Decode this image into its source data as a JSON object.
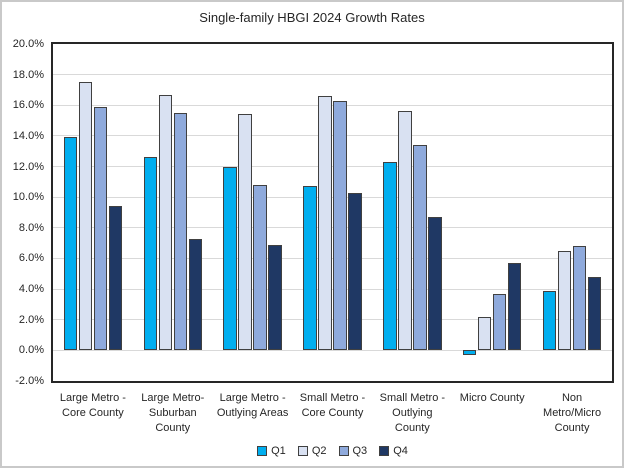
{
  "chart_data": {
    "type": "bar",
    "title": "Single-family HBGI 2024 Growth Rates",
    "categories": [
      "Large Metro - Core County",
      "Large Metro- Suburban County",
      "Large Metro - Outlying Areas",
      "Small Metro - Core County",
      "Small Metro - Outlying County",
      "Micro County",
      "Non Metro/Micro County"
    ],
    "categories_lines": [
      [
        "Large Metro -",
        "Core County"
      ],
      [
        "Large Metro-",
        "Suburban",
        "County"
      ],
      [
        "Large Metro -",
        "Outlying Areas"
      ],
      [
        "Small Metro -",
        "Core County"
      ],
      [
        "Small Metro -",
        "Outlying",
        "County"
      ],
      [
        "Micro County"
      ],
      [
        "Non",
        "Metro/Micro",
        "County"
      ]
    ],
    "series": [
      {
        "name": "Q1",
        "color": "#00AEEF",
        "values": [
          13.9,
          12.6,
          12.0,
          10.7,
          12.3,
          -0.3,
          3.9
        ]
      },
      {
        "name": "Q2",
        "color": "#D9E1F2",
        "values": [
          17.5,
          16.7,
          15.4,
          16.6,
          15.6,
          2.2,
          6.5
        ]
      },
      {
        "name": "Q3",
        "color": "#8FAADC",
        "values": [
          15.9,
          15.5,
          10.8,
          16.3,
          13.4,
          3.7,
          6.8
        ]
      },
      {
        "name": "Q4",
        "color": "#1F3864",
        "values": [
          9.4,
          7.3,
          6.9,
          10.3,
          8.7,
          5.7,
          4.8
        ]
      }
    ],
    "ylim": [
      -2,
      20
    ],
    "ytick_step": 2,
    "ytick_labels": [
      "-2.0%",
      "0.0%",
      "2.0%",
      "4.0%",
      "6.0%",
      "8.0%",
      "10.0%",
      "12.0%",
      "14.0%",
      "16.0%",
      "18.0%",
      "20.0%"
    ],
    "grid": true,
    "legend_position": "bottom",
    "styles": {
      "bar_border_color": "#404040",
      "gridline_color": "#D9D9D9",
      "plot_border_color": "#262626",
      "text_color": "#262626"
    }
  }
}
